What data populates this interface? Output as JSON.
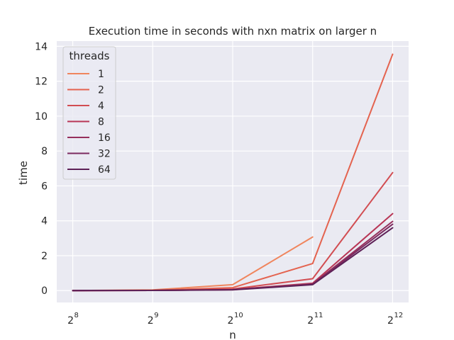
{
  "chart_data": {
    "type": "line",
    "title": "Execution time in seconds with nxn matrix on larger n",
    "xlabel": "n",
    "ylabel": "time",
    "x_ticks": [
      {
        "base": "2",
        "exp": "8",
        "value": 8
      },
      {
        "base": "2",
        "exp": "9",
        "value": 9
      },
      {
        "base": "2",
        "exp": "10",
        "value": 10
      },
      {
        "base": "2",
        "exp": "11",
        "value": 11
      },
      {
        "base": "2",
        "exp": "12",
        "value": 12
      }
    ],
    "y_ticks": [
      0,
      2,
      4,
      6,
      8,
      10,
      12,
      14
    ],
    "xlim": [
      7.8,
      12.2
    ],
    "ylim": [
      -0.68,
      14.3
    ],
    "grid": true,
    "legend_title": "threads",
    "legend_position": "top-left",
    "colors": {
      "plot_background": "#eaeaf2",
      "grid": "#ffffff"
    },
    "series": [
      {
        "name": "1",
        "color": "#f0855d",
        "x": [
          8,
          9,
          10,
          11
        ],
        "y": [
          0.0,
          0.04,
          0.34,
          3.07
        ]
      },
      {
        "name": "2",
        "color": "#e4634f",
        "x": [
          8,
          9,
          10,
          11,
          12
        ],
        "y": [
          0.0,
          0.02,
          0.17,
          1.55,
          13.55
        ]
      },
      {
        "name": "4",
        "color": "#d24d52",
        "x": [
          8,
          9,
          10,
          11,
          12
        ],
        "y": [
          0.0,
          0.01,
          0.09,
          0.68,
          6.76
        ]
      },
      {
        "name": "8",
        "color": "#b83656",
        "x": [
          8,
          9,
          10,
          11,
          12
        ],
        "y": [
          0.0,
          0.01,
          0.06,
          0.42,
          4.41
        ]
      },
      {
        "name": "16",
        "color": "#962f5c",
        "x": [
          8,
          9,
          10,
          11,
          12
        ],
        "y": [
          0.0,
          0.01,
          0.05,
          0.38,
          3.97
        ]
      },
      {
        "name": "32",
        "color": "#7c2a5f",
        "x": [
          8,
          9,
          10,
          11,
          12
        ],
        "y": [
          0.0,
          0.01,
          0.05,
          0.36,
          3.8
        ]
      },
      {
        "name": "64",
        "color": "#5e2157",
        "x": [
          8,
          9,
          10,
          11,
          12
        ],
        "y": [
          0.0,
          0.01,
          0.04,
          0.34,
          3.6
        ]
      }
    ]
  }
}
